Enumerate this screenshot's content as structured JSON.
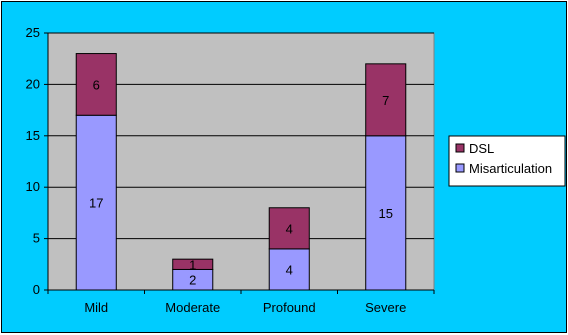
{
  "chart_data": {
    "type": "bar",
    "stacked": true,
    "title": "",
    "xlabel": "",
    "ylabel": "",
    "categories": [
      "Mild",
      "Moderate",
      "Profound",
      "Severe"
    ],
    "series": [
      {
        "name": "Misarticulation",
        "values": [
          17,
          2,
          4,
          15
        ],
        "color": "#9999ff"
      },
      {
        "name": "DSL",
        "values": [
          6,
          1,
          4,
          7
        ],
        "color": "#993366"
      }
    ],
    "ylim": [
      0,
      25
    ],
    "yticks": [
      0,
      5,
      10,
      15,
      20,
      25
    ],
    "grid": true,
    "legend_position": "right",
    "colors": {
      "background": "#00ccff",
      "plot_area": "#c0c0c0"
    }
  }
}
